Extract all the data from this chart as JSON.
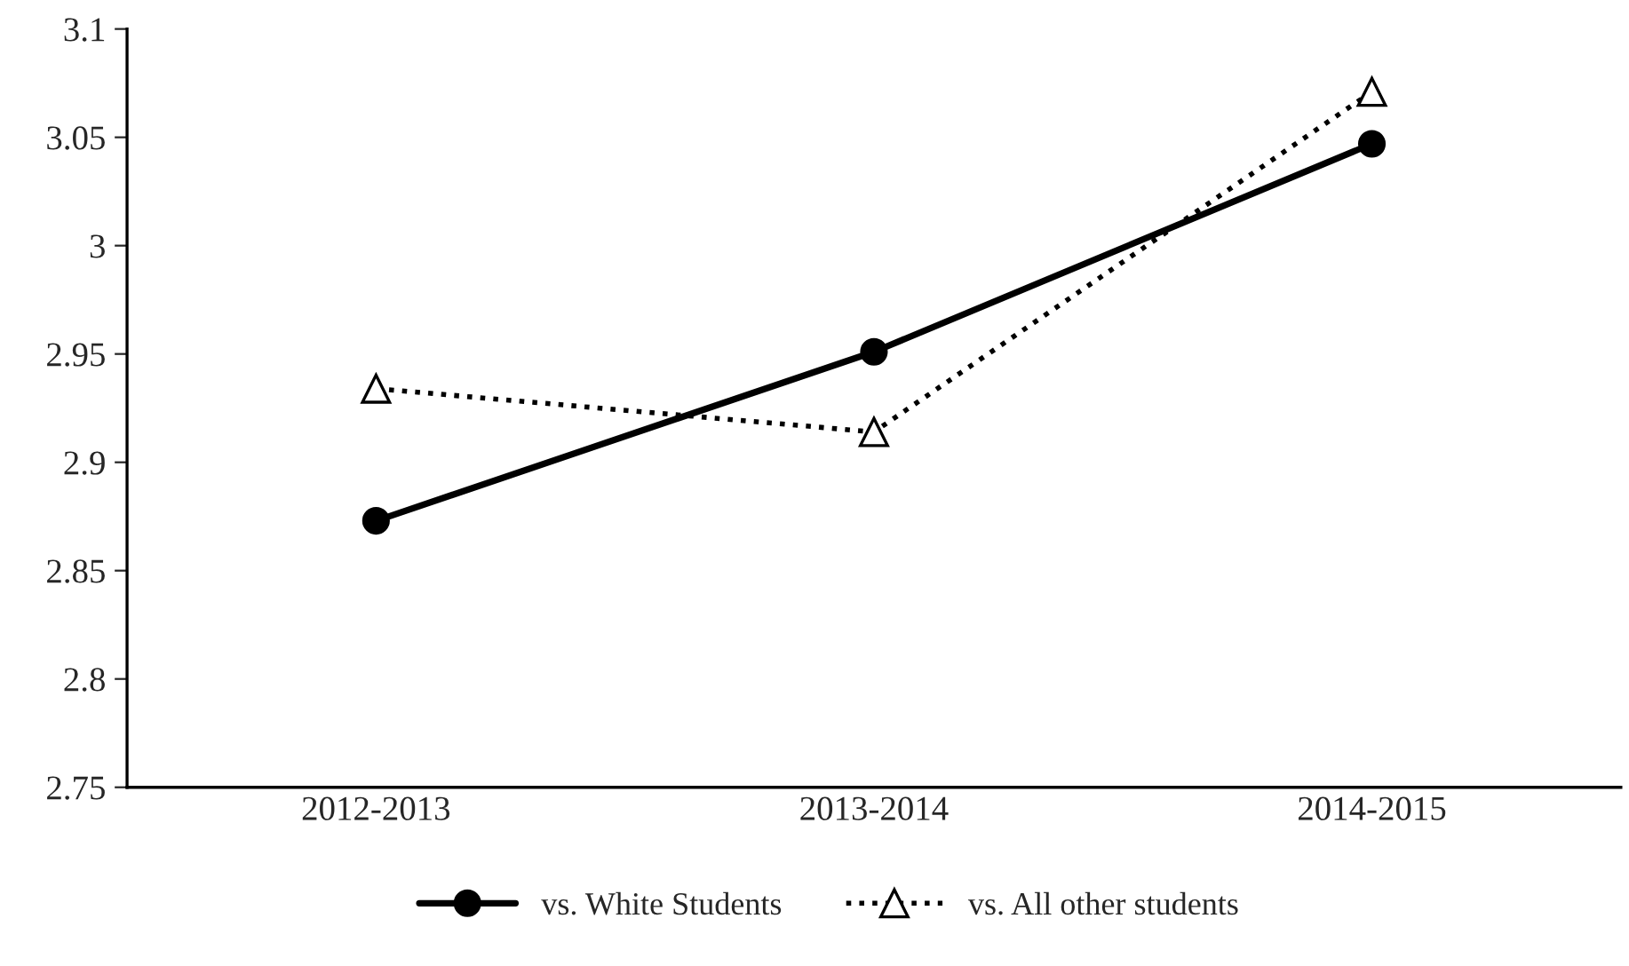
{
  "chart_data": {
    "type": "line",
    "categories": [
      "2012-2013",
      "2013-2014",
      "2014-2015"
    ],
    "series": [
      {
        "name": "vs. White Students",
        "color": "#000000",
        "values": [
          2.873,
          2.951,
          3.047
        ],
        "marker": "circle",
        "line_style": "solid"
      },
      {
        "name": "vs. All other students",
        "color": "#000000",
        "values": [
          2.934,
          2.914,
          3.071
        ],
        "marker": "triangle",
        "line_style": "dotted"
      }
    ],
    "ylim": [
      2.75,
      3.1
    ],
    "yticks": [
      2.75,
      2.8,
      2.85,
      2.9,
      2.95,
      3,
      3.05,
      3.1
    ],
    "grid": false,
    "legend": "bottom"
  }
}
